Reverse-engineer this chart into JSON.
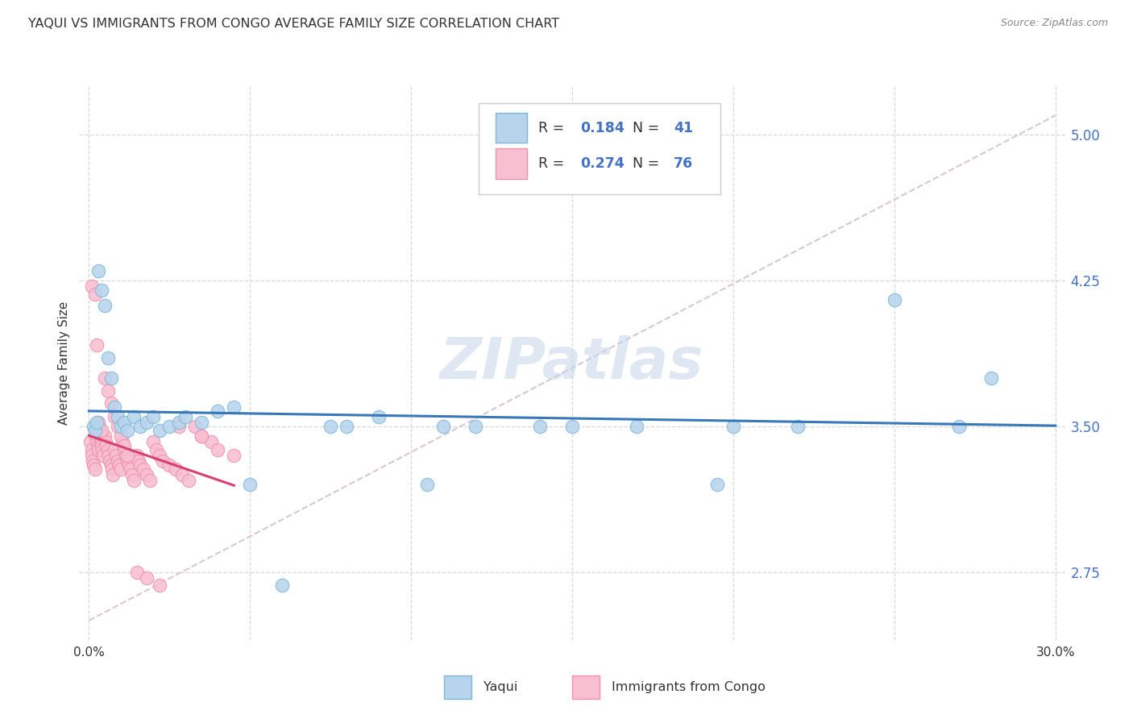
{
  "title": "YAQUI VS IMMIGRANTS FROM CONGO AVERAGE FAMILY SIZE CORRELATION CHART",
  "source": "Source: ZipAtlas.com",
  "ylabel": "Average Family Size",
  "yticks": [
    2.75,
    3.5,
    4.25,
    5.0
  ],
  "xlim": [
    0.0,
    30.0
  ],
  "ylim": [
    2.4,
    5.25
  ],
  "blue_fill": "#b8d4ed",
  "blue_edge": "#7db8d8",
  "blue_line": "#3878b8",
  "pink_fill": "#f8bfd0",
  "pink_edge": "#f090b0",
  "pink_line": "#d84070",
  "text_color": "#333333",
  "axis_label_color": "#4472c4",
  "grid_color": "#d8d8d8",
  "diag_color": "#d0b8c8",
  "watermark_text": "ZIPatlas",
  "watermark_color": "#c8d8ea",
  "yaqui_x": [
    0.15,
    0.2,
    0.25,
    0.3,
    0.4,
    0.5,
    0.6,
    0.7,
    0.8,
    0.9,
    1.0,
    1.1,
    1.2,
    1.4,
    1.6,
    1.8,
    2.0,
    2.2,
    2.5,
    2.8,
    3.0,
    3.5,
    4.0,
    4.5,
    5.0,
    6.0,
    7.5,
    9.0,
    10.5,
    12.0,
    14.0,
    17.0,
    19.5,
    22.0,
    25.0,
    8.0,
    11.0,
    15.0,
    20.0,
    27.0,
    28.0
  ],
  "yaqui_y": [
    3.5,
    3.48,
    3.52,
    4.3,
    4.2,
    4.12,
    3.85,
    3.75,
    3.6,
    3.55,
    3.5,
    3.52,
    3.48,
    3.55,
    3.5,
    3.52,
    3.55,
    3.48,
    3.5,
    3.52,
    3.55,
    3.52,
    3.58,
    3.6,
    3.2,
    2.68,
    3.5,
    3.55,
    3.2,
    3.5,
    3.5,
    3.5,
    3.2,
    3.5,
    4.15,
    3.5,
    3.5,
    3.5,
    3.5,
    3.5,
    3.75
  ],
  "congo_x": [
    0.05,
    0.08,
    0.1,
    0.12,
    0.15,
    0.18,
    0.2,
    0.22,
    0.25,
    0.28,
    0.3,
    0.32,
    0.35,
    0.38,
    0.4,
    0.42,
    0.45,
    0.5,
    0.52,
    0.55,
    0.6,
    0.62,
    0.65,
    0.7,
    0.72,
    0.75,
    0.8,
    0.85,
    0.9,
    0.95,
    1.0,
    1.05,
    1.1,
    1.15,
    1.2,
    1.25,
    1.3,
    1.35,
    1.4,
    1.5,
    1.55,
    1.6,
    1.7,
    1.8,
    1.9,
    2.0,
    2.1,
    2.2,
    2.3,
    2.5,
    2.7,
    2.9,
    3.1,
    3.3,
    3.5,
    3.8,
    4.0,
    4.5,
    0.1,
    0.2,
    0.3,
    0.4,
    0.5,
    0.6,
    0.7,
    0.8,
    0.9,
    1.0,
    1.1,
    1.2,
    1.5,
    1.8,
    2.2,
    2.8,
    3.5,
    0.25
  ],
  "congo_y": [
    3.42,
    3.38,
    3.35,
    3.32,
    3.3,
    3.28,
    3.48,
    3.45,
    3.42,
    3.4,
    3.38,
    3.5,
    3.45,
    3.42,
    3.4,
    3.38,
    3.35,
    3.45,
    3.42,
    3.4,
    3.38,
    3.35,
    3.32,
    3.3,
    3.28,
    3.25,
    3.38,
    3.35,
    3.32,
    3.3,
    3.28,
    3.42,
    3.38,
    3.35,
    3.32,
    3.3,
    3.28,
    3.25,
    3.22,
    3.35,
    3.32,
    3.3,
    3.28,
    3.25,
    3.22,
    3.42,
    3.38,
    3.35,
    3.32,
    3.3,
    3.28,
    3.25,
    3.22,
    3.5,
    3.45,
    3.42,
    3.38,
    3.35,
    4.22,
    4.18,
    3.52,
    3.48,
    3.75,
    3.68,
    3.62,
    3.55,
    3.5,
    3.45,
    3.4,
    3.35,
    2.75,
    2.72,
    2.68,
    3.5,
    3.45,
    3.92
  ]
}
